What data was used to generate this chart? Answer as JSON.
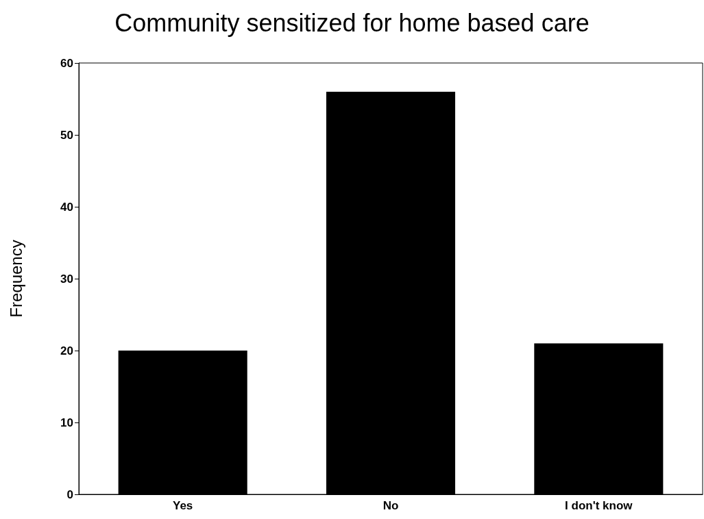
{
  "chart_data": {
    "type": "bar",
    "title": "Community sensitized for home based care",
    "ylabel": "Frequency",
    "categories": [
      "Yes",
      "No",
      "I don't know"
    ],
    "values": [
      20,
      56,
      21
    ],
    "color": "#000000",
    "ylim": [
      0,
      60
    ],
    "yticks": [
      0,
      10,
      20,
      30,
      40,
      50,
      60
    ],
    "grid": false
  }
}
